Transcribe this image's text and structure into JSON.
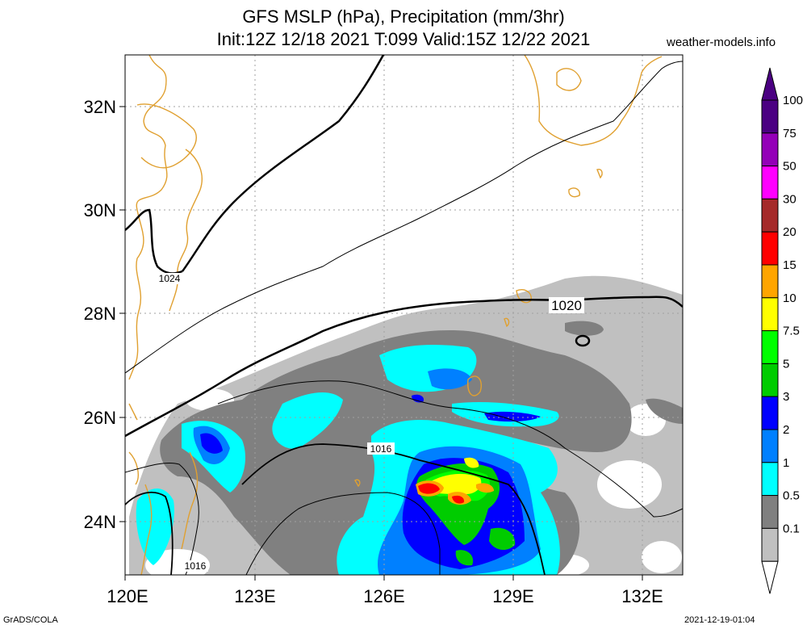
{
  "title": {
    "line1": "GFS MSLP (hPa), Precipitation (mm/3hr)",
    "line2": "Init:12Z 12/18 2021 T:099 Valid:15Z 12/22 2021"
  },
  "credit": "weather-models.info",
  "footer": {
    "left": "GrADS/COLA",
    "right": "2021-12-19-01:04"
  },
  "map": {
    "lat_labels": [
      "32N",
      "30N",
      "28N",
      "26N",
      "24N"
    ],
    "lon_labels": [
      "120E",
      "123E",
      "126E",
      "129E",
      "132E"
    ],
    "isobar_labels": [
      "1024",
      "1020",
      "1016",
      "1016"
    ],
    "colors": {
      "coastline": "#e0a030",
      "isobar": "#000000",
      "grid": "#a0a0a0"
    }
  },
  "legend": {
    "items": [
      {
        "label": "100",
        "color": "#4b0082"
      },
      {
        "label": "75",
        "color": "#9400b8"
      },
      {
        "label": "50",
        "color": "#ff00ff"
      },
      {
        "label": "30",
        "color": "#a52a2a"
      },
      {
        "label": "20",
        "color": "#ff0000"
      },
      {
        "label": "15",
        "color": "#ffa500"
      },
      {
        "label": "10",
        "color": "#ffff00"
      },
      {
        "label": "7.5",
        "color": "#00ff00"
      },
      {
        "label": "5",
        "color": "#00cc00"
      },
      {
        "label": "3",
        "color": "#0000ff"
      },
      {
        "label": "2",
        "color": "#0080ff"
      },
      {
        "label": "1",
        "color": "#00ffff"
      },
      {
        "label": "0.5",
        "color": "#808080"
      },
      {
        "label": "0.1",
        "color": "#c0c0c0"
      }
    ],
    "top_arrow_color": "#4b0082"
  }
}
